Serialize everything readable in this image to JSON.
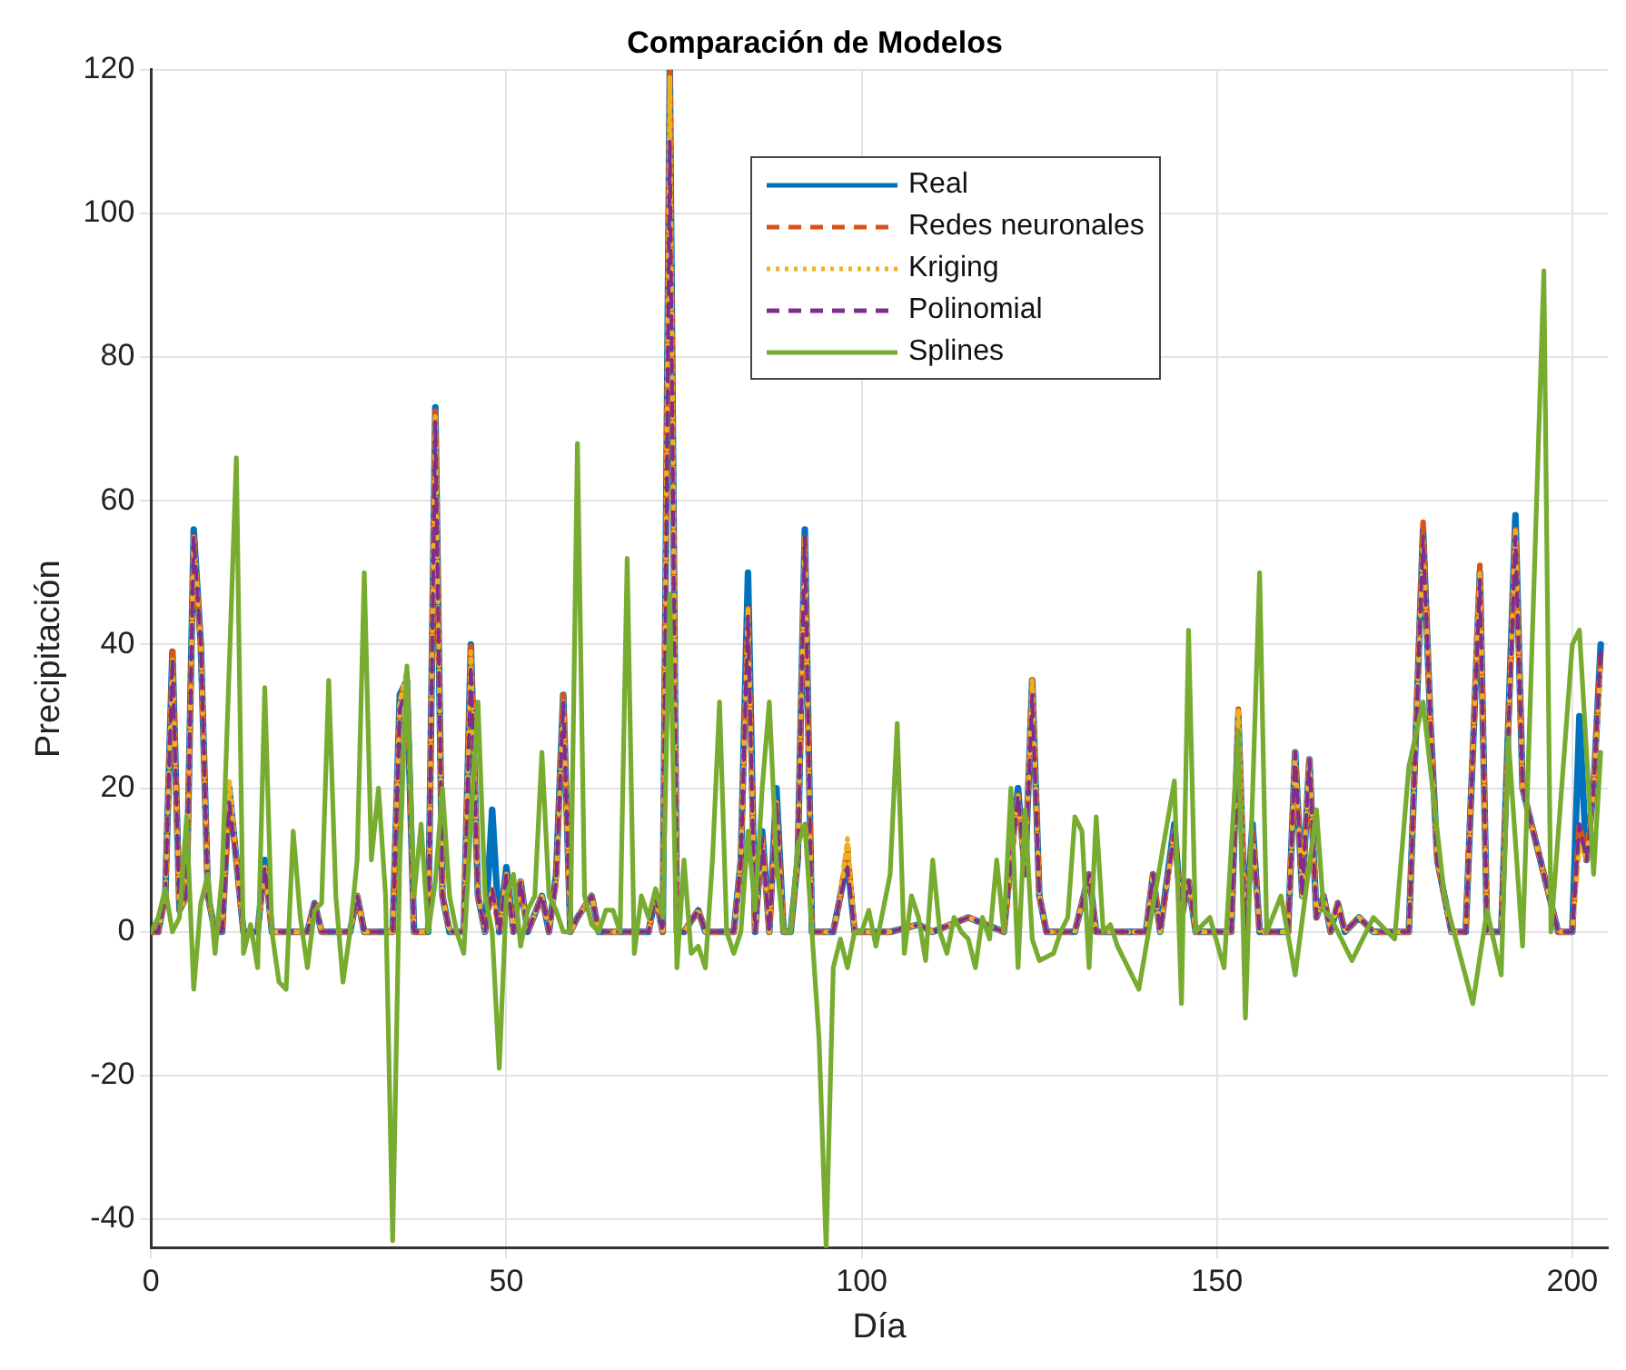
{
  "chart_data": {
    "type": "line",
    "title": "Comparación de Modelos",
    "xlabel": "Día",
    "ylabel": "Precipitación",
    "xlim": [
      0,
      205
    ],
    "xticks": [
      0,
      50,
      100,
      150,
      200
    ],
    "ylim": [
      -44,
      120
    ],
    "yticks": [
      -40,
      -20,
      0,
      20,
      40,
      60,
      80,
      100,
      120
    ],
    "grid": true,
    "legend": "top",
    "series": [
      {
        "name": "Real",
        "color": "#0072bd",
        "line_style": "solid",
        "x": [
          0,
          1,
          2,
          3,
          4,
          5,
          6,
          7,
          8,
          9,
          10,
          11,
          12,
          13,
          15,
          16,
          17,
          20,
          22,
          23,
          24,
          28,
          29,
          30,
          33,
          34,
          35,
          36,
          37,
          39,
          40,
          41,
          42,
          44,
          45,
          46,
          47,
          48,
          49,
          50,
          51,
          52,
          53,
          55,
          56,
          57,
          58,
          59,
          60,
          62,
          63,
          70,
          71,
          72,
          73,
          74,
          75,
          77,
          78,
          82,
          83,
          84,
          85,
          86,
          87,
          88,
          89,
          90,
          91,
          92,
          93,
          96,
          97,
          98,
          99,
          104,
          108,
          110,
          115,
          120,
          122,
          123,
          124,
          125,
          126,
          130,
          132,
          133,
          140,
          141,
          142,
          144,
          145,
          146,
          147,
          152,
          153,
          154,
          155,
          156,
          160,
          161,
          162,
          163,
          164,
          165,
          166,
          167,
          168,
          170,
          172,
          177,
          179,
          180,
          181,
          182,
          183,
          185,
          187,
          188,
          190,
          192,
          193,
          198,
          200,
          201,
          202,
          203,
          204
        ],
        "values": [
          0,
          0,
          5,
          39,
          3,
          5,
          56,
          40,
          5,
          0,
          0,
          20,
          10,
          0,
          0,
          10,
          0,
          0,
          0,
          4,
          0,
          0,
          5,
          0,
          0,
          0,
          33,
          35,
          0,
          0,
          73,
          5,
          0,
          0,
          40,
          5,
          0,
          17,
          0,
          9,
          0,
          7,
          0,
          5,
          0,
          8,
          33,
          0,
          2,
          5,
          0,
          0,
          5,
          0,
          120,
          0,
          0,
          3,
          0,
          0,
          10,
          50,
          0,
          14,
          0,
          20,
          0,
          0,
          10,
          56,
          0,
          0,
          5,
          10,
          0,
          0,
          1,
          0,
          2,
          0,
          20,
          8,
          35,
          5,
          0,
          0,
          8,
          0,
          0,
          8,
          0,
          15,
          2,
          7,
          0,
          0,
          30,
          0,
          15,
          0,
          0,
          25,
          5,
          24,
          2,
          5,
          0,
          4,
          0,
          2,
          0,
          0,
          56,
          30,
          10,
          5,
          0,
          0,
          50,
          0,
          0,
          58,
          20,
          0,
          0,
          30,
          10,
          20,
          40
        ]
      },
      {
        "name": "Redes neuronales",
        "color": "#d95319",
        "line_style": "dashed",
        "x": [
          0,
          1,
          2,
          3,
          4,
          5,
          6,
          7,
          8,
          9,
          10,
          11,
          12,
          13,
          15,
          16,
          17,
          20,
          22,
          23,
          24,
          28,
          29,
          30,
          33,
          34,
          35,
          36,
          37,
          39,
          40,
          41,
          42,
          44,
          45,
          46,
          47,
          48,
          49,
          50,
          51,
          52,
          53,
          55,
          56,
          57,
          58,
          59,
          60,
          62,
          63,
          70,
          71,
          72,
          73,
          74,
          75,
          77,
          78,
          82,
          83,
          84,
          85,
          86,
          87,
          88,
          89,
          90,
          91,
          92,
          93,
          96,
          97,
          98,
          99,
          104,
          108,
          110,
          115,
          120,
          122,
          123,
          124,
          125,
          126,
          130,
          132,
          133,
          140,
          141,
          142,
          144,
          145,
          146,
          147,
          152,
          153,
          154,
          155,
          156,
          160,
          161,
          162,
          163,
          164,
          165,
          166,
          167,
          168,
          170,
          172,
          177,
          179,
          180,
          181,
          182,
          183,
          185,
          187,
          188,
          190,
          192,
          193,
          198,
          200,
          201,
          202,
          203,
          204
        ],
        "values": [
          0,
          0,
          5,
          39,
          3,
          5,
          55,
          40,
          5,
          0,
          0,
          19,
          10,
          0,
          0,
          9,
          0,
          0,
          0,
          4,
          0,
          0,
          5,
          0,
          0,
          0,
          32,
          36,
          0,
          0,
          73,
          5,
          0,
          0,
          40,
          5,
          0,
          6,
          0,
          8,
          0,
          7,
          0,
          5,
          0,
          7,
          33,
          0,
          2,
          5,
          0,
          0,
          5,
          0,
          120,
          0,
          0,
          3,
          0,
          0,
          10,
          45,
          0,
          13,
          0,
          18,
          0,
          0,
          10,
          55,
          0,
          0,
          5,
          12,
          0,
          0,
          1,
          0,
          2,
          0,
          19,
          8,
          35,
          5,
          0,
          0,
          8,
          0,
          0,
          8,
          0,
          14,
          2,
          7,
          0,
          0,
          31,
          0,
          14,
          0,
          0,
          25,
          5,
          24,
          2,
          5,
          0,
          4,
          0,
          2,
          0,
          0,
          57,
          30,
          10,
          5,
          0,
          0,
          51,
          0,
          0,
          56,
          20,
          0,
          0,
          15,
          10,
          20,
          39
        ]
      },
      {
        "name": "Kriging",
        "color": "#edb120",
        "line_style": "dotted",
        "x": [
          0,
          1,
          2,
          3,
          4,
          5,
          6,
          7,
          8,
          9,
          10,
          11,
          12,
          13,
          15,
          16,
          17,
          20,
          22,
          23,
          24,
          28,
          29,
          30,
          33,
          34,
          35,
          36,
          37,
          39,
          40,
          41,
          42,
          44,
          45,
          46,
          47,
          48,
          49,
          50,
          51,
          52,
          53,
          55,
          56,
          57,
          58,
          59,
          60,
          62,
          63,
          70,
          71,
          72,
          73,
          74,
          75,
          77,
          78,
          82,
          83,
          84,
          85,
          86,
          87,
          88,
          89,
          90,
          91,
          92,
          93,
          96,
          97,
          98,
          99,
          104,
          108,
          110,
          115,
          120,
          122,
          123,
          124,
          125,
          126,
          130,
          132,
          133,
          140,
          141,
          142,
          144,
          145,
          146,
          147,
          152,
          153,
          154,
          155,
          156,
          160,
          161,
          162,
          163,
          164,
          165,
          166,
          167,
          168,
          170,
          172,
          177,
          179,
          180,
          181,
          182,
          183,
          185,
          187,
          188,
          190,
          192,
          193,
          198,
          200,
          201,
          202,
          203,
          204
        ],
        "values": [
          0,
          0,
          5,
          38,
          3,
          5,
          55,
          40,
          5,
          0,
          0,
          21,
          10,
          0,
          0,
          9,
          0,
          0,
          0,
          4,
          0,
          0,
          5,
          0,
          0,
          0,
          32,
          36,
          0,
          0,
          72,
          5,
          0,
          0,
          39,
          5,
          0,
          6,
          0,
          8,
          0,
          7,
          0,
          5,
          0,
          7,
          32,
          0,
          2,
          5,
          0,
          0,
          5,
          0,
          119,
          0,
          0,
          3,
          0,
          0,
          10,
          45,
          0,
          13,
          0,
          18,
          0,
          0,
          10,
          55,
          0,
          0,
          5,
          13,
          0,
          0,
          1,
          0,
          2,
          0,
          19,
          8,
          35,
          5,
          0,
          0,
          8,
          0,
          0,
          8,
          0,
          14,
          2,
          7,
          0,
          0,
          31,
          0,
          14,
          0,
          0,
          25,
          5,
          24,
          2,
          5,
          0,
          4,
          0,
          2,
          0,
          0,
          55,
          30,
          10,
          5,
          0,
          0,
          50,
          0,
          0,
          56,
          20,
          0,
          0,
          12,
          10,
          20,
          37
        ]
      },
      {
        "name": "Polinomial",
        "color": "#7e2f8e",
        "line_style": "dashed",
        "x": [
          0,
          1,
          2,
          3,
          4,
          5,
          6,
          7,
          8,
          9,
          10,
          11,
          12,
          13,
          15,
          16,
          17,
          20,
          22,
          23,
          24,
          28,
          29,
          30,
          33,
          34,
          35,
          36,
          37,
          39,
          40,
          41,
          42,
          44,
          45,
          46,
          47,
          48,
          49,
          50,
          51,
          52,
          53,
          55,
          56,
          57,
          58,
          59,
          60,
          62,
          63,
          70,
          71,
          72,
          73,
          74,
          75,
          77,
          78,
          82,
          83,
          84,
          85,
          86,
          87,
          88,
          89,
          90,
          91,
          92,
          93,
          96,
          97,
          98,
          99,
          104,
          108,
          110,
          115,
          120,
          122,
          123,
          124,
          125,
          126,
          130,
          132,
          133,
          140,
          141,
          142,
          144,
          145,
          146,
          147,
          152,
          153,
          154,
          155,
          156,
          160,
          161,
          162,
          163,
          164,
          165,
          166,
          167,
          168,
          170,
          172,
          177,
          179,
          180,
          181,
          182,
          183,
          185,
          187,
          188,
          190,
          192,
          193,
          198,
          200,
          201,
          202,
          203,
          204
        ],
        "values": [
          0,
          0,
          5,
          38,
          3,
          5,
          55,
          40,
          5,
          0,
          0,
          18,
          10,
          0,
          0,
          9,
          0,
          0,
          0,
          4,
          0,
          0,
          5,
          0,
          0,
          0,
          31,
          34,
          0,
          0,
          71,
          5,
          0,
          0,
          37,
          5,
          0,
          6,
          0,
          8,
          0,
          7,
          0,
          5,
          0,
          7,
          32,
          0,
          2,
          5,
          0,
          0,
          5,
          0,
          110,
          0,
          0,
          3,
          0,
          0,
          10,
          44,
          0,
          13,
          0,
          18,
          0,
          0,
          10,
          55,
          0,
          0,
          5,
          9,
          0,
          0,
          1,
          0,
          2,
          0,
          19,
          8,
          33,
          5,
          0,
          0,
          8,
          0,
          0,
          8,
          0,
          14,
          2,
          7,
          0,
          0,
          28,
          0,
          14,
          0,
          0,
          25,
          5,
          24,
          2,
          5,
          0,
          4,
          0,
          2,
          0,
          0,
          55,
          30,
          10,
          5,
          0,
          0,
          49,
          0,
          0,
          55,
          20,
          0,
          0,
          15,
          10,
          20,
          39
        ]
      },
      {
        "name": "Splines",
        "color": "#77ac30",
        "line_style": "solid",
        "x": [
          0,
          1,
          2,
          3,
          4,
          5,
          6,
          7,
          8,
          9,
          10,
          12,
          13,
          14,
          15,
          16,
          17,
          18,
          19,
          20,
          21,
          22,
          23,
          24,
          25,
          26,
          27,
          28,
          29,
          30,
          31,
          32,
          33,
          34,
          35,
          36,
          37,
          38,
          39,
          40,
          41,
          42,
          43,
          44,
          45,
          46,
          47,
          48,
          49,
          50,
          51,
          52,
          53,
          54,
          55,
          56,
          57,
          58,
          59,
          60,
          61,
          62,
          63,
          64,
          65,
          66,
          67,
          68,
          69,
          70,
          71,
          72,
          73,
          74,
          75,
          76,
          77,
          78,
          79,
          80,
          81,
          82,
          83,
          84,
          85,
          86,
          87,
          88,
          89,
          90,
          91,
          92,
          93,
          94,
          95,
          96,
          97,
          98,
          99,
          100,
          101,
          102,
          104,
          105,
          106,
          107,
          108,
          109,
          110,
          111,
          112,
          113,
          114,
          115,
          116,
          117,
          118,
          119,
          120,
          121,
          122,
          123,
          124,
          125,
          127,
          128,
          129,
          130,
          131,
          132,
          133,
          134,
          135,
          136,
          139,
          144,
          145,
          146,
          147,
          149,
          151,
          153,
          154,
          156,
          157,
          159,
          161,
          164,
          165,
          166,
          169,
          172,
          175,
          177,
          179,
          182,
          186,
          188,
          190,
          191,
          193,
          196,
          197,
          200,
          201,
          203,
          204
        ],
        "values": [
          0,
          2,
          6,
          0,
          2,
          16,
          -8,
          4,
          8,
          -3,
          8,
          66,
          -3,
          1,
          -5,
          34,
          0,
          -7,
          -8,
          14,
          2,
          -5,
          3,
          4,
          35,
          5,
          -7,
          0,
          10,
          50,
          10,
          20,
          5,
          -43,
          10,
          37,
          5,
          15,
          0,
          7,
          20,
          5,
          0,
          -3,
          15,
          32,
          5,
          0,
          -19,
          5,
          8,
          -2,
          3,
          5,
          25,
          5,
          3,
          0,
          0,
          68,
          5,
          1,
          0,
          3,
          3,
          0,
          52,
          -3,
          5,
          2,
          6,
          2,
          47,
          -5,
          10,
          -3,
          -2,
          -5,
          10,
          32,
          0,
          -3,
          0,
          14,
          3,
          20,
          32,
          10,
          0,
          0,
          12,
          15,
          0,
          -15,
          -44,
          -5,
          -1,
          -5,
          0,
          0,
          3,
          -2,
          8,
          29,
          -3,
          5,
          2,
          -4,
          10,
          0,
          -3,
          2,
          0,
          -1,
          -5,
          2,
          -1,
          10,
          0,
          20,
          -5,
          17,
          -1,
          -4,
          -3,
          0,
          2,
          16,
          14,
          -5,
          16,
          0,
          1,
          -2,
          -8,
          21,
          -10,
          42,
          0,
          2,
          -5,
          28,
          -12,
          50,
          0,
          5,
          -6,
          17,
          3,
          2,
          -4,
          2,
          -1,
          23,
          32,
          5,
          -10,
          3,
          -6,
          27,
          -2,
          92,
          0,
          40,
          42,
          8,
          25
        ]
      }
    ]
  }
}
